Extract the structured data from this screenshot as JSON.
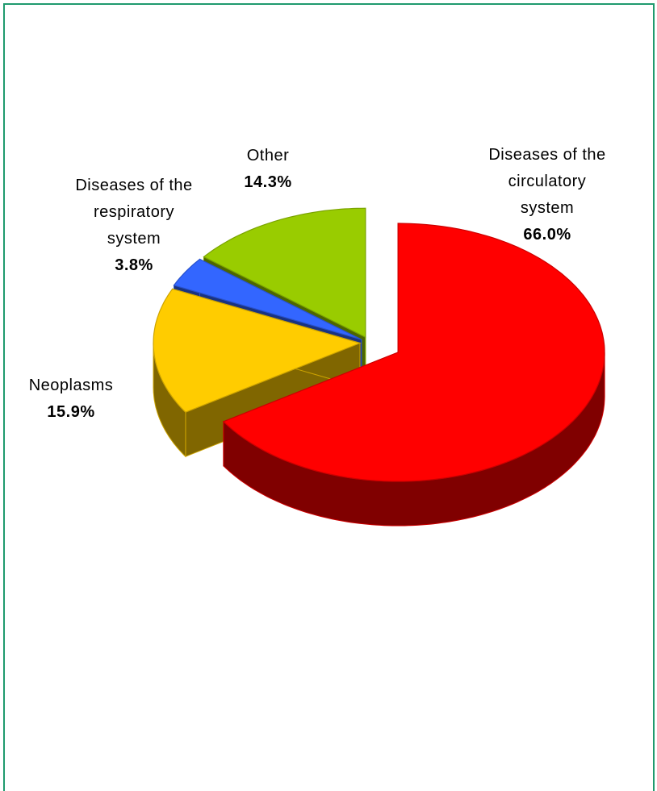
{
  "chart_data": {
    "type": "pie3d",
    "categories": [
      "Diseases of the circulatory system",
      "Neoplasms",
      "Diseases of the respiratory system",
      "Other"
    ],
    "values": [
      66.0,
      15.9,
      3.8,
      14.3
    ],
    "value_labels": [
      "66.0%",
      "15.9%",
      "3.8%",
      "14.3%"
    ],
    "colors": [
      "#ff0000",
      "#ffcc00",
      "#3366ff",
      "#99cc00"
    ]
  }
}
